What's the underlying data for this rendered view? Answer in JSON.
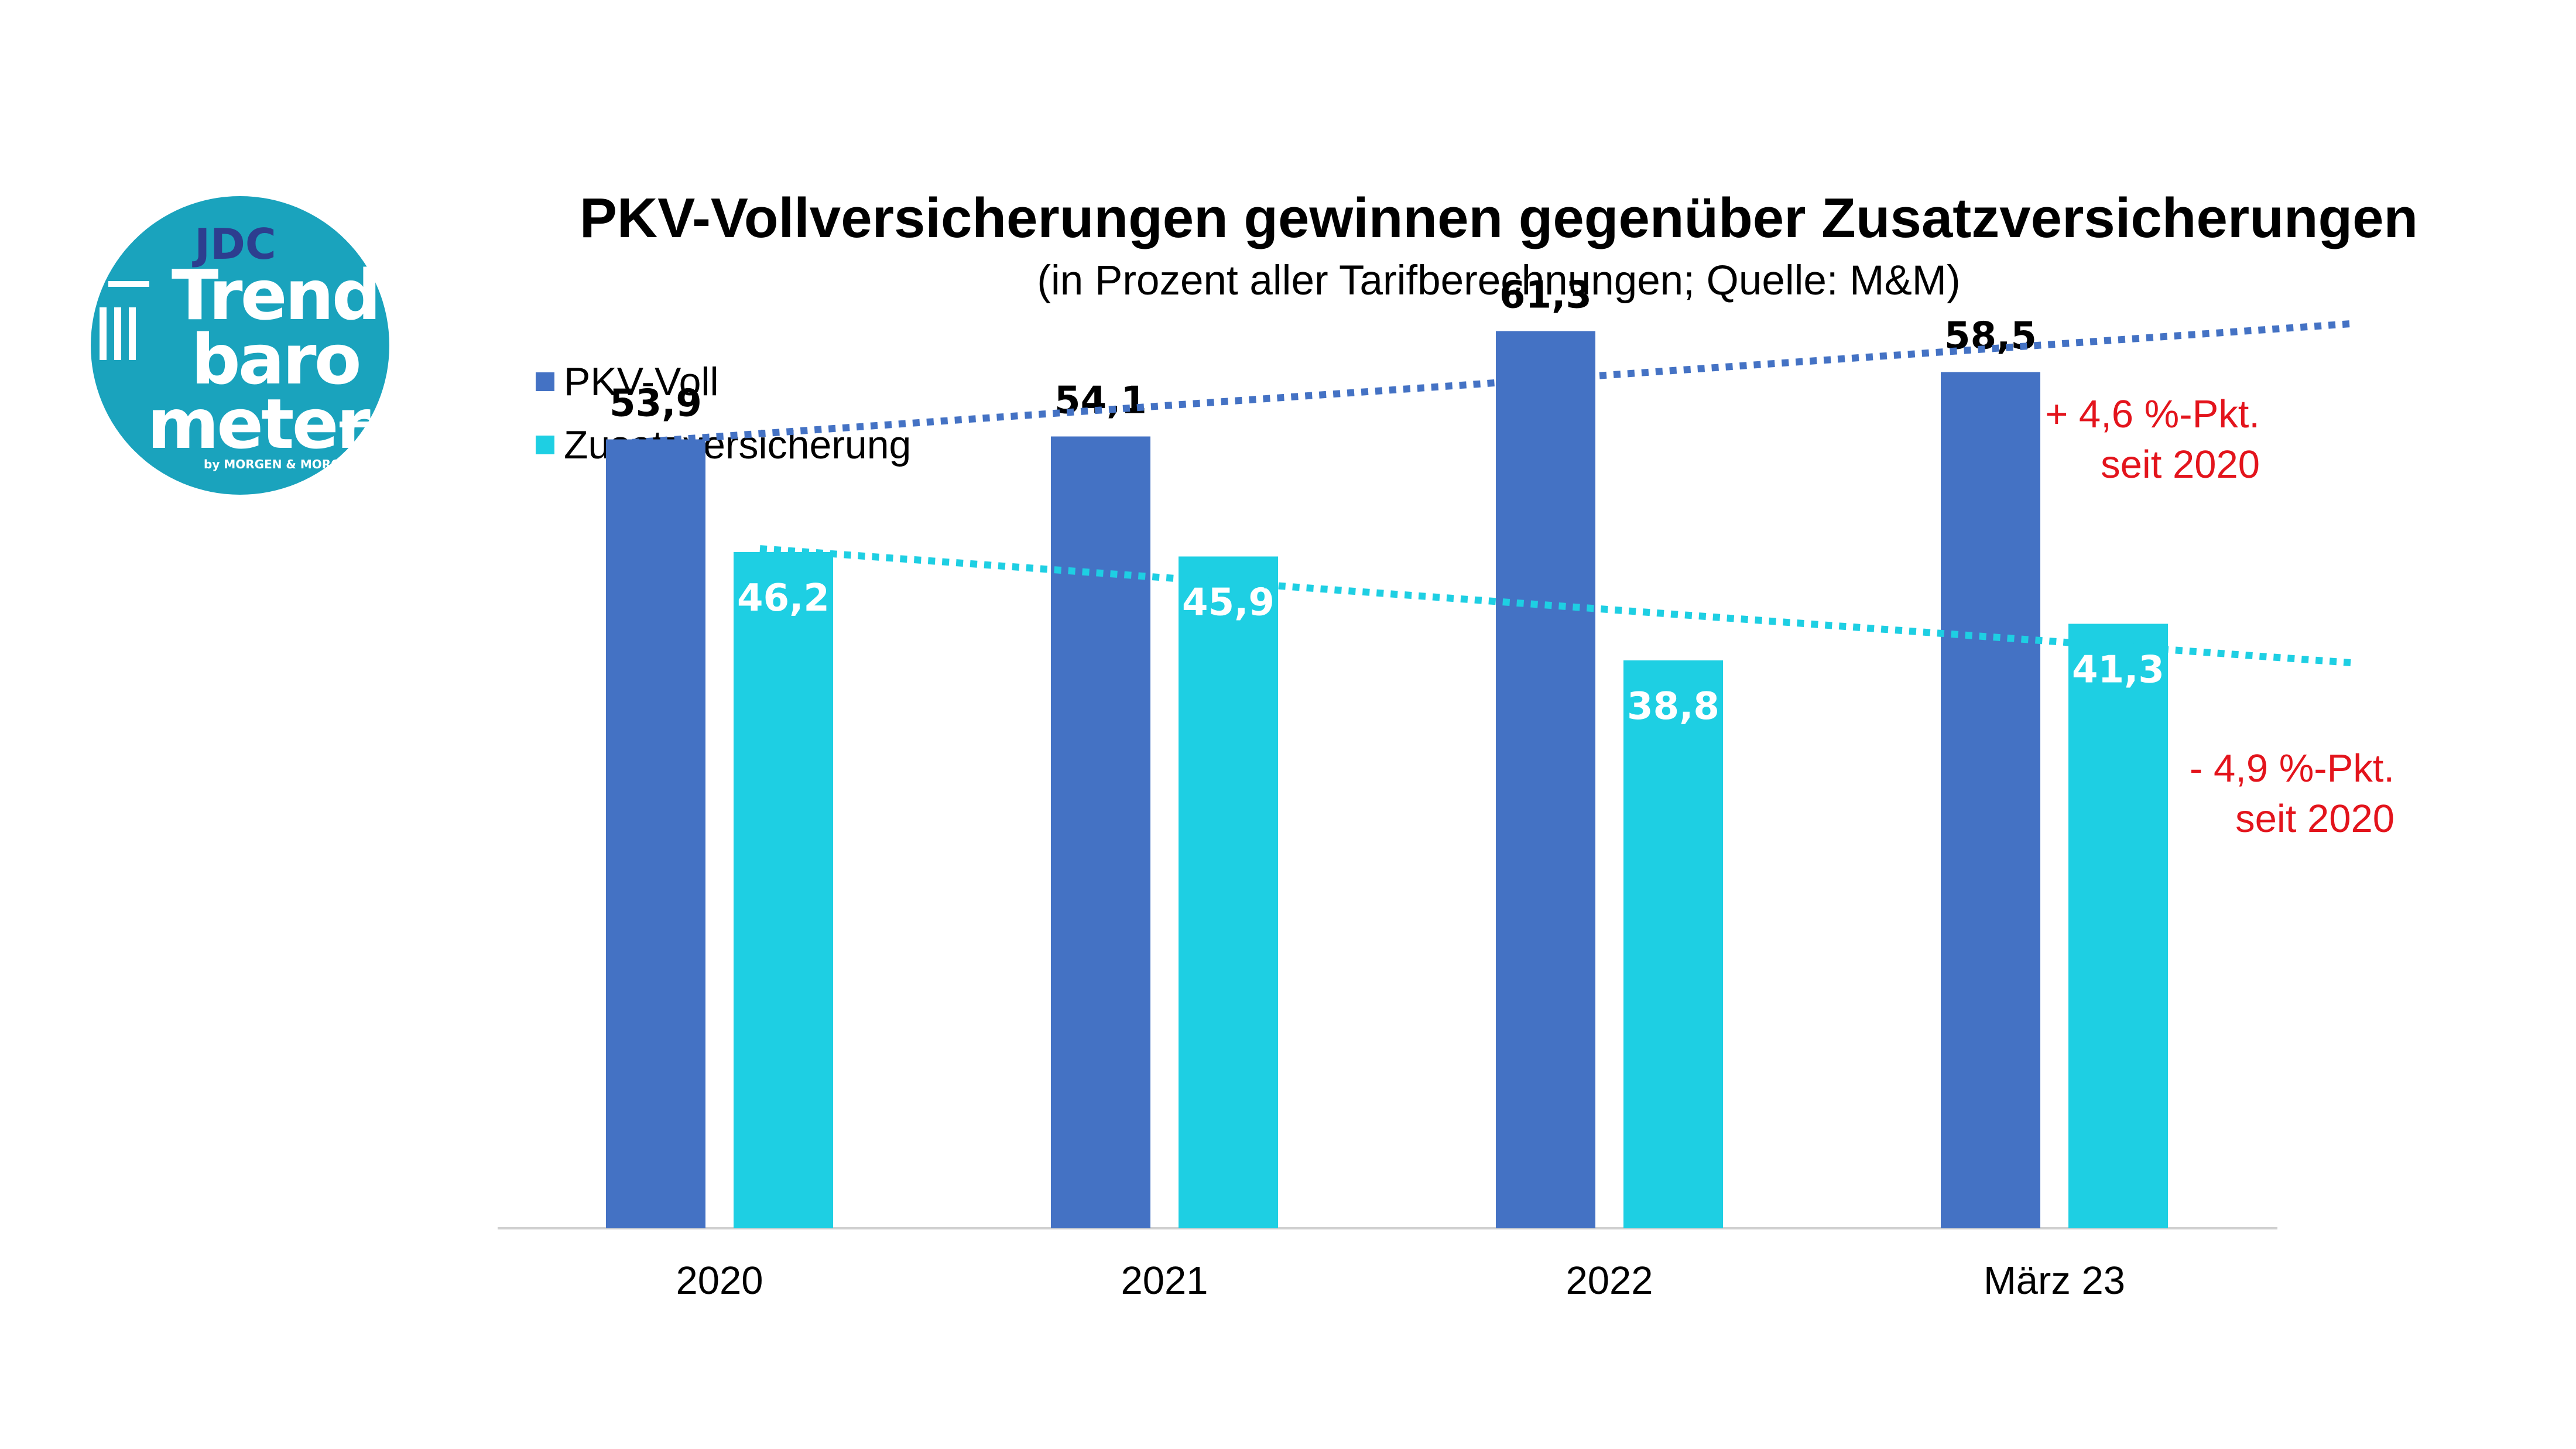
{
  "logo": {
    "brand_top": "JDC",
    "lines": [
      "Trend",
      "baro",
      "meter"
    ],
    "byline": "by MORGEN & MORGEN"
  },
  "colors": {
    "pkv": "#4472C4",
    "zusatz": "#1ECFE3",
    "annotation": "#E3141C",
    "logo_bg": "#1AA3BD",
    "logo_accent": "#2D3E8F",
    "axis": "#D0D0D0"
  },
  "chart_data": {
    "type": "bar",
    "title": "PKV-Vollversicherungen gewinnen gegenüber Zusatzversicherungen",
    "subtitle": "(in Prozent aller Tarifberechnungen; Quelle: M&M)",
    "categories": [
      "2020",
      "2021",
      "2022",
      "März 23"
    ],
    "series": [
      {
        "name": "PKV-Voll",
        "values": [
          53.9,
          54.1,
          61.3,
          58.5
        ],
        "labels": [
          "53,9",
          "54,1",
          "61,3",
          "58,5"
        ]
      },
      {
        "name": "Zusatzversicherung",
        "values": [
          46.2,
          45.9,
          38.8,
          41.3
        ],
        "labels": [
          "46,2",
          "45,9",
          "38,8",
          "41,3"
        ]
      }
    ],
    "trendlines": [
      {
        "series": "PKV-Voll",
        "style": "dotted"
      },
      {
        "series": "Zusatzversicherung",
        "style": "dotted"
      }
    ],
    "ylim": [
      0,
      70
    ],
    "grid": false,
    "legend": "top-left",
    "annotations": [
      {
        "series": "PKV-Voll",
        "lines": [
          "+ 4,6 %-Pkt.",
          "seit 2020"
        ]
      },
      {
        "series": "Zusatzversicherung",
        "lines": [
          "- 4,9 %-Pkt.",
          "seit 2020"
        ]
      }
    ]
  }
}
